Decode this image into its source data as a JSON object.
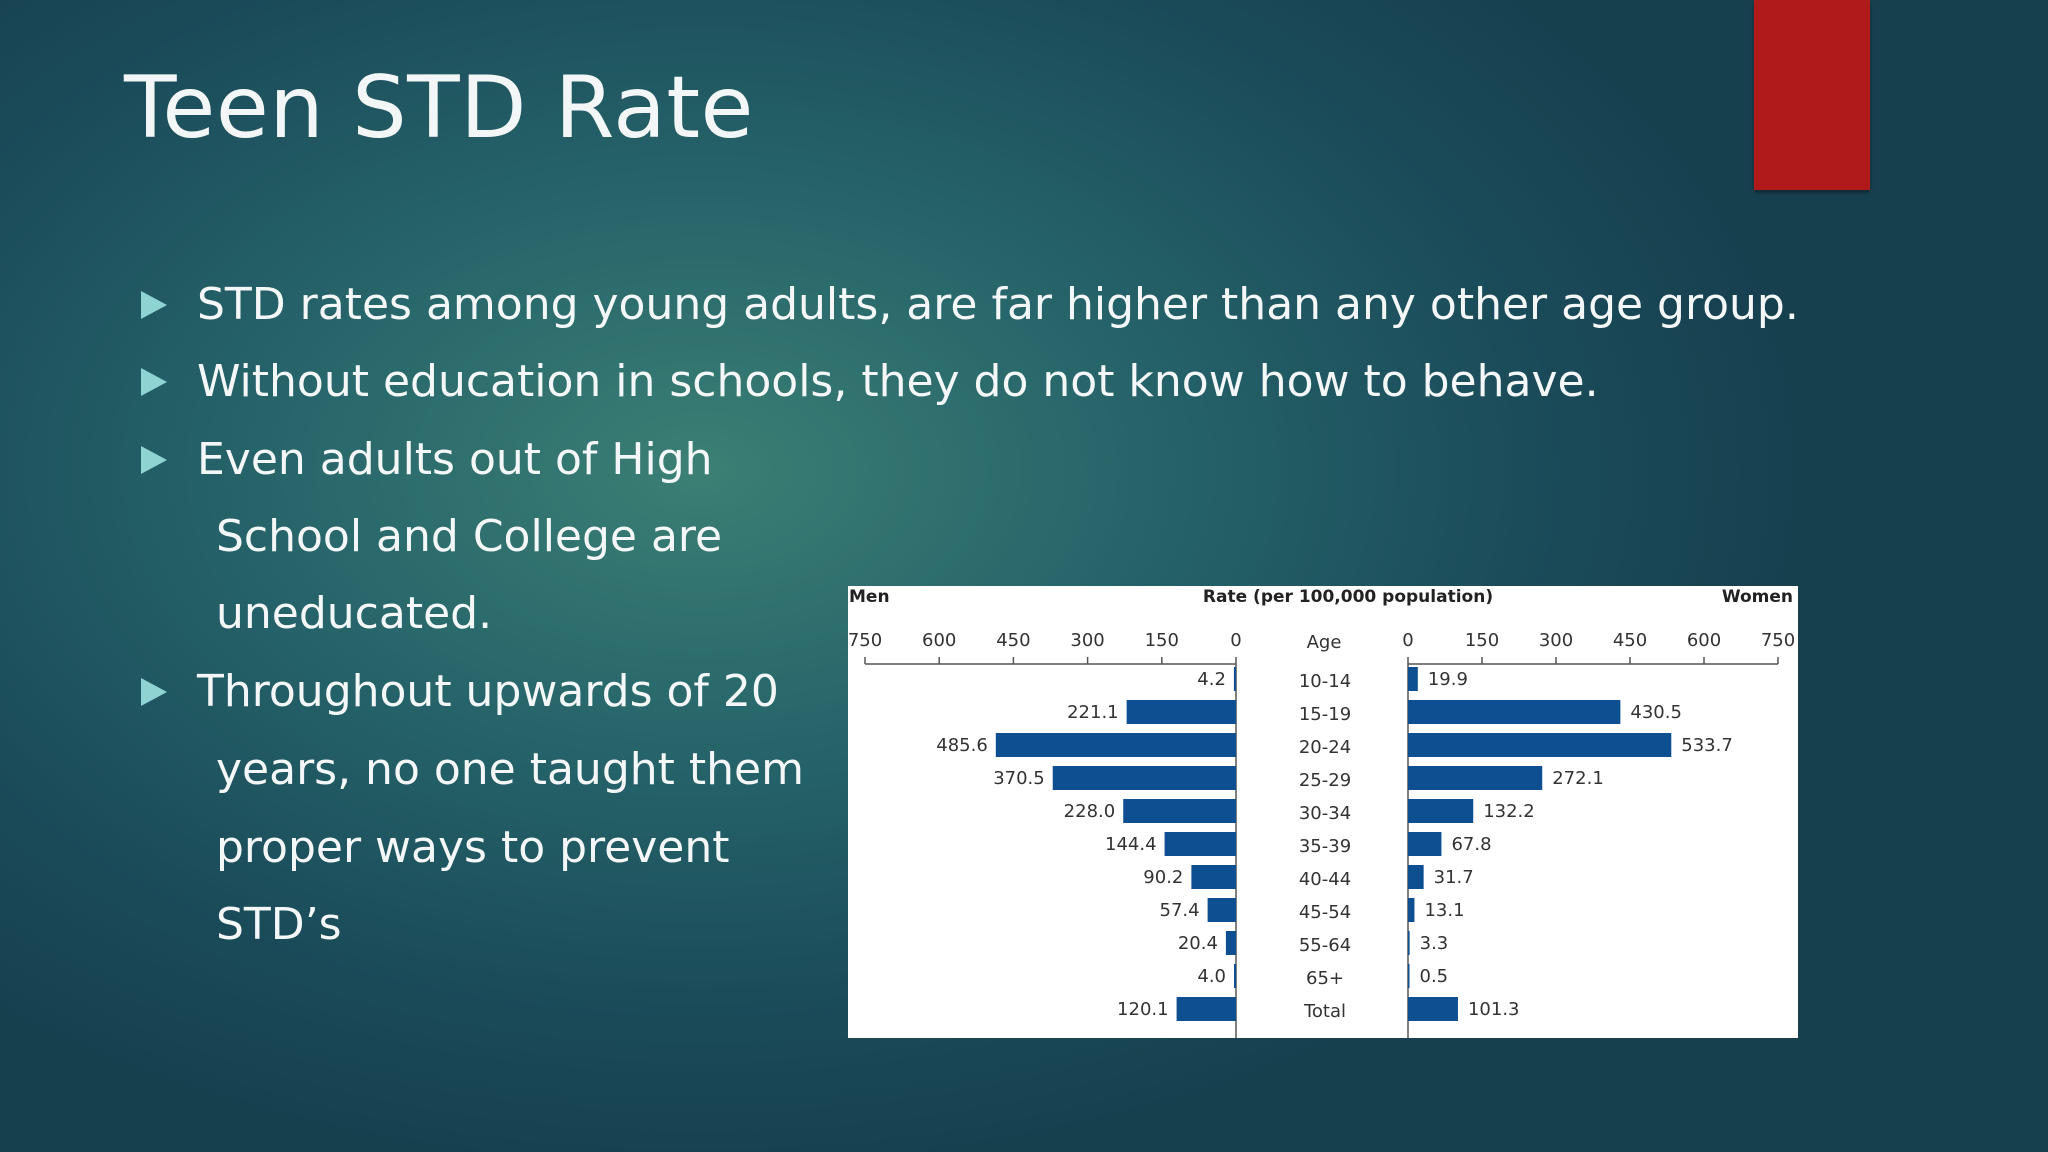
{
  "slide": {
    "title": "Teen STD Rate",
    "bullets": [
      {
        "lines": [
          "STD rates among young adults, are far higher than any other age     group."
        ]
      },
      {
        "lines": [
          "Without education in schools, they do not know how to behave."
        ]
      },
      {
        "lines": [
          "Even adults out of High",
          "School and College are",
          "uneducated."
        ]
      },
      {
        "lines": [
          "Throughout upwards of 20",
          "years, no one taught them",
          "proper ways to prevent",
          "STD’s"
        ]
      }
    ]
  },
  "colors": {
    "bar": "#0e4f92",
    "accent": "#b11a1a",
    "bullet_arrow": "#8fd3d2"
  },
  "chart_data": {
    "type": "bar",
    "orientation": "horizontal-back-to-back",
    "title": "Rate (per 100,000 population)",
    "left_label": "Men",
    "right_label": "Women",
    "category_label": "Age",
    "categories": [
      "10-14",
      "15-19",
      "20-24",
      "25-29",
      "30-34",
      "35-39",
      "40-44",
      "45-54",
      "55-64",
      "65+",
      "Total"
    ],
    "series": [
      {
        "name": "Men",
        "values": [
          4.2,
          221.1,
          485.6,
          370.5,
          228.0,
          144.4,
          90.2,
          57.4,
          20.4,
          4.0,
          120.1
        ]
      },
      {
        "name": "Women",
        "values": [
          19.9,
          430.5,
          533.7,
          272.1,
          132.2,
          67.8,
          31.7,
          13.1,
          3.3,
          0.5,
          101.3
        ]
      }
    ],
    "left_ticks": [
      "750",
      "600",
      "450",
      "300",
      "150",
      "0"
    ],
    "right_ticks": [
      "0",
      "150",
      "300",
      "450",
      "600",
      "750"
    ],
    "xlim": [
      0,
      750
    ],
    "grid": false
  }
}
